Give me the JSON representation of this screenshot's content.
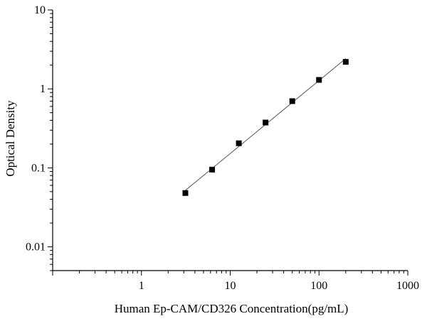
{
  "chart_data": {
    "type": "scatter",
    "xlabel": "Human Ep-CAM/CD326 Concentration(pg/mL)",
    "ylabel": "Optical Density",
    "x_scale": "log",
    "y_scale": "log",
    "xlim": [
      0.1,
      1000
    ],
    "ylim": [
      0.005,
      10
    ],
    "x_ticks": [
      {
        "value": 1,
        "label": "1"
      },
      {
        "value": 10,
        "label": "10"
      },
      {
        "value": 100,
        "label": "100"
      },
      {
        "value": 1000,
        "label": "1000"
      }
    ],
    "y_ticks": [
      {
        "value": 0.01,
        "label": "0.01"
      },
      {
        "value": 0.1,
        "label": "0.1"
      },
      {
        "value": 1,
        "label": "1"
      },
      {
        "value": 10,
        "label": "10"
      }
    ],
    "grid": false,
    "marker": "square",
    "fit_line": true,
    "series": [
      {
        "x": [
          3.125,
          6.25,
          12.5,
          25,
          50,
          100,
          200
        ],
        "y": [
          0.048,
          0.095,
          0.205,
          0.375,
          0.7,
          1.3,
          2.2
        ]
      }
    ],
    "colors": {
      "marker": "#000000",
      "line": "#555555",
      "axis": "#000000"
    }
  }
}
